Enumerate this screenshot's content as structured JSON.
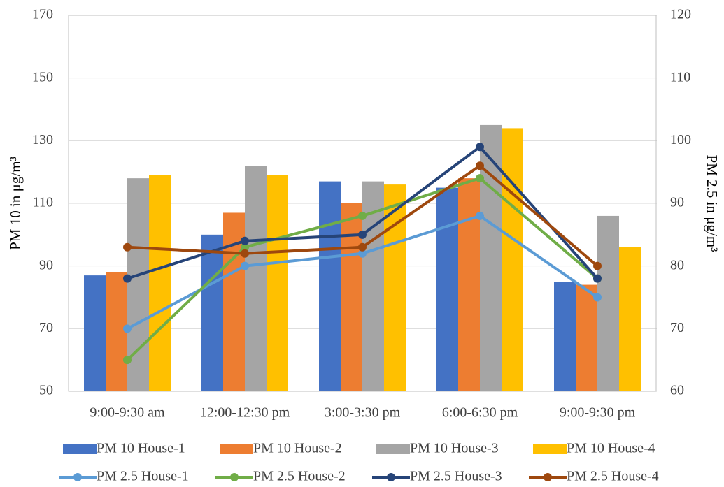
{
  "chart_data": {
    "type": "combo",
    "y_label": "PM 10 in μg/m³",
    "y2_label": "PM 2.5 in μg/m³",
    "categories": [
      "9:00-9:30 am",
      "12:00-12:30 pm",
      "3:00-3:30 pm",
      "6:00-6:30 pm",
      "9:00-9:30 pm"
    ],
    "ylim": [
      50,
      170
    ],
    "yticks": [
      50,
      70,
      90,
      110,
      130,
      150,
      170
    ],
    "y2lim": [
      60,
      120
    ],
    "y2ticks": [
      60,
      70,
      80,
      90,
      100,
      110,
      120
    ],
    "grid": true,
    "series": [
      {
        "name": "PM 10 House-1",
        "type": "bar",
        "color": "#4472c4",
        "values": [
          87,
          100,
          117,
          115,
          85
        ]
      },
      {
        "name": "PM 10 House-2",
        "type": "bar",
        "color": "#ed7d31",
        "values": [
          88,
          107,
          110,
          118,
          84
        ]
      },
      {
        "name": "PM 10 House-3",
        "type": "bar",
        "color": "#a5a5a5",
        "values": [
          118,
          122,
          117,
          135,
          106
        ]
      },
      {
        "name": "PM 10 House-4",
        "type": "bar",
        "color": "#ffc000",
        "values": [
          119,
          119,
          116,
          134,
          96
        ]
      },
      {
        "name": "PM 2.5 House-1",
        "type": "line",
        "axis": "y2",
        "color": "#5b9bd5",
        "values": [
          70,
          80,
          82,
          88,
          75
        ]
      },
      {
        "name": "PM 2.5 House-2",
        "type": "line",
        "axis": "y2",
        "color": "#70ad47",
        "values": [
          65,
          83,
          88,
          94,
          78
        ]
      },
      {
        "name": "PM 2.5 House-3",
        "type": "line",
        "axis": "y2",
        "color": "#264478",
        "values": [
          78,
          84,
          85,
          99,
          78
        ]
      },
      {
        "name": "PM 2.5 House-4",
        "type": "line",
        "axis": "y2",
        "color": "#9e480e",
        "values": [
          83,
          82,
          83,
          96,
          80
        ]
      }
    ]
  }
}
